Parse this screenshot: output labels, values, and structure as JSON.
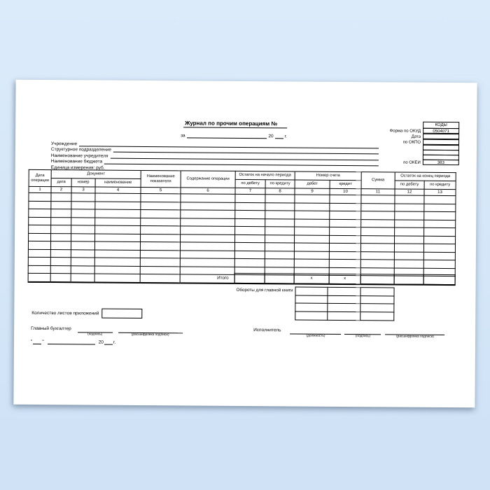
{
  "title": "Журнал по прочим операциям №",
  "period": {
    "prefix": "за",
    "year": "20",
    "suffix": "г."
  },
  "codes_box": {
    "header": "КОДЫ",
    "rows": [
      {
        "label": "Форма по ОКУД",
        "value": "0504071"
      },
      {
        "label": "Дата",
        "value": ""
      },
      {
        "label": "по ОКПО",
        "value": ""
      },
      {
        "label": "",
        "value": ""
      },
      {
        "label": "",
        "value": ""
      },
      {
        "label": "",
        "value": ""
      },
      {
        "label": "по ОКЕИ",
        "value": "383"
      }
    ]
  },
  "info": {
    "lines": [
      {
        "label": "Учреждение",
        "underline": true
      },
      {
        "label": "Структурное подразделение",
        "underline": true
      },
      {
        "label": "Наименование учредителя",
        "underline": true
      },
      {
        "label": "Наименование бюджета",
        "underline": true
      },
      {
        "label": "Единица измерения: руб.",
        "underline": false
      }
    ]
  },
  "table": {
    "groups": [
      {
        "label": "Дата операции",
        "cols": 1,
        "tall": true
      },
      {
        "label": "Документ",
        "cols": 3,
        "tall": false
      },
      {
        "label": "Наименование показателя",
        "cols": 1,
        "tall": true
      },
      {
        "label": "Содержание операции",
        "cols": 1,
        "tall": true
      },
      {
        "label": "Остаток на начало периода",
        "cols": 2,
        "tall": false
      },
      {
        "label": "Номер счета",
        "cols": 2,
        "tall": false
      },
      {
        "label": "Сумма",
        "cols": 1,
        "tall": true
      },
      {
        "label": "Остаток на конец периода",
        "cols": 2,
        "tall": false
      }
    ],
    "subheaders": [
      "дата",
      "номер",
      "наименование",
      "по дебету",
      "по кредиту",
      "дебет",
      "кредит",
      "по дебету",
      "по кредиту"
    ],
    "column_numbers": [
      "1",
      "2",
      "3",
      "4",
      "5",
      "6",
      "7",
      "8",
      "9",
      "10",
      "11",
      "12",
      "13"
    ],
    "empty_rows": 11,
    "columns": 13,
    "total": {
      "label": "Итого",
      "cells": [
        "",
        "",
        "x",
        "x",
        "",
        "",
        ""
      ]
    }
  },
  "turnover": {
    "label": "Обороты для главной книги",
    "rows": 4,
    "cols": 3
  },
  "attachments": {
    "label": "Количество листов приложений"
  },
  "signatures": {
    "chief": {
      "label": "Главный бухгалтер",
      "fields": [
        {
          "caption": "(подпись)"
        },
        {
          "caption": "(расшифровка подписи)"
        }
      ]
    },
    "executor": {
      "label": "Исполнитель",
      "fields": [
        {
          "caption": "(должность)"
        },
        {
          "caption": "(подпись)"
        },
        {
          "caption": "(расшифровка подписи)"
        }
      ]
    },
    "date_line": {
      "open": "\"",
      "close": "\"",
      "year": "20",
      "suffix": "г."
    }
  }
}
